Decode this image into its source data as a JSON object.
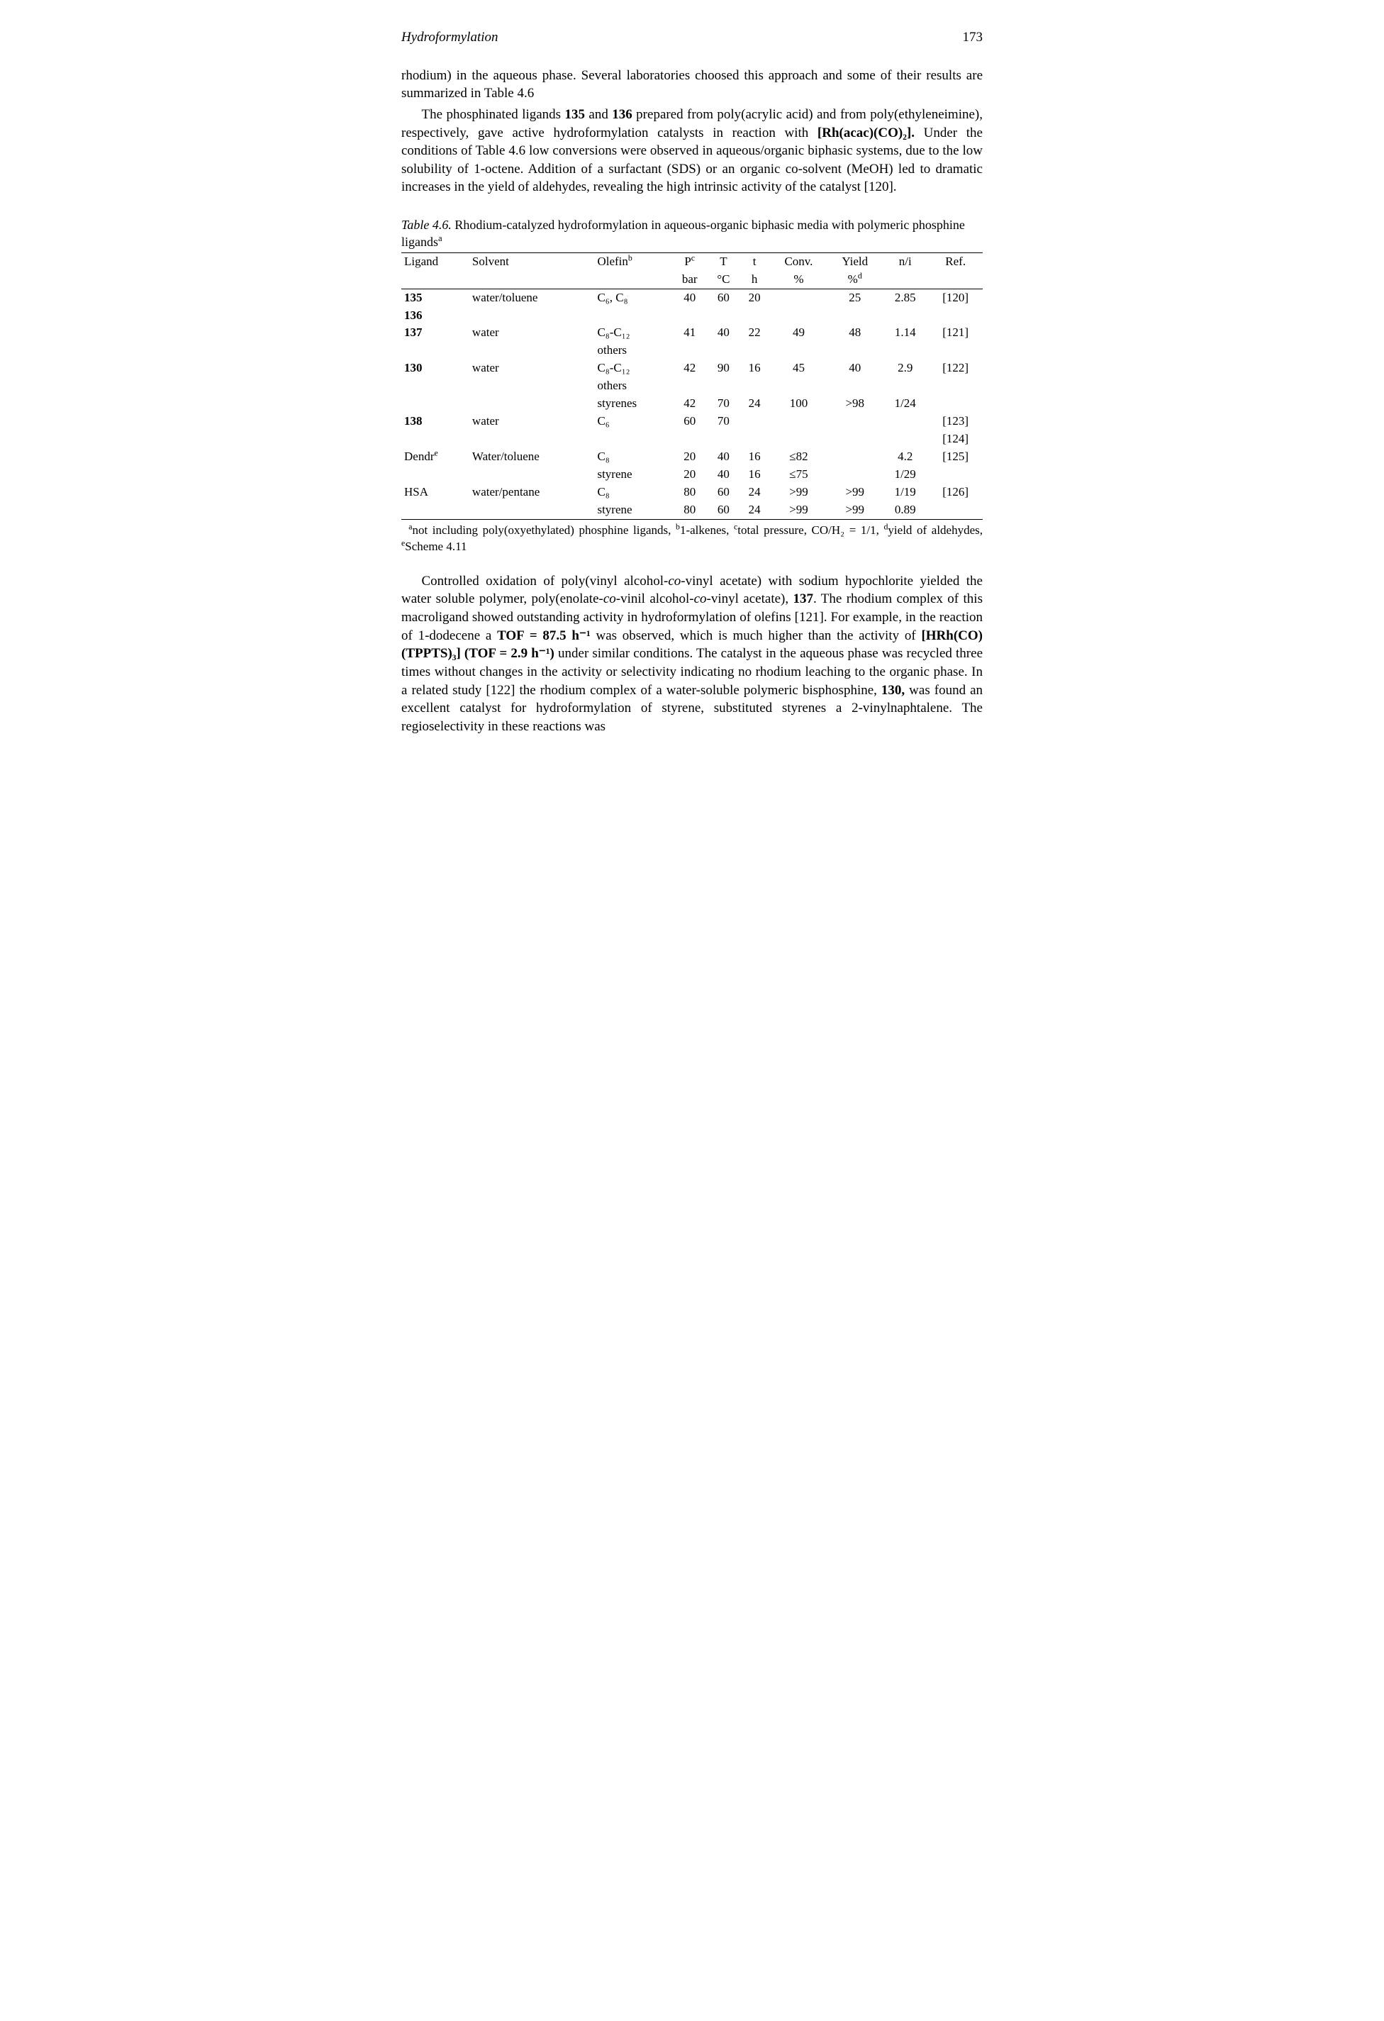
{
  "header": {
    "running": "Hydroformylation",
    "page": "173"
  },
  "para1": "rhodium) in the aqueous phase. Several laboratories choosed this approach and some of their results are summarized in Table 4.6",
  "para2_a": "The phosphinated ligands ",
  "para2_b": "135",
  "para2_c": " and ",
  "para2_d": "136",
  "para2_e": " prepared from poly(acrylic acid) and from poly(ethyleneimine), respectively, gave active hydroformylation catalysts in reaction with ",
  "para2_f": "[Rh(acac)(CO)₂].",
  "para2_g": " Under the conditions of Table 4.6 low conversions were observed in aqueous/organic biphasic systems, due to the low solubility of 1-octene. Addition of a surfactant (SDS) or an organic co-solvent (MeOH) led to dramatic increases in the yield of aldehydes, revealing the high intrinsic activity of the catalyst [120].",
  "table": {
    "caption_a": "Table 4.6.",
    "caption_b": " Rhodium-catalyzed hydroformylation in aqueous-organic biphasic media with polymeric phosphine ligands",
    "caption_sup": "a",
    "cols": {
      "c1": "Ligand",
      "c2": "Solvent",
      "c3": "Olefin",
      "c3s": "b",
      "c4": "P",
      "c4s": "c",
      "c4u": "bar",
      "c5": "T",
      "c5u": "°C",
      "c6": "t",
      "c6u": "h",
      "c7": "Conv.",
      "c7u": "%",
      "c8": "Yield",
      "c8u": "%",
      "c8us": "d",
      "c9": "n/i",
      "c10": "Ref."
    },
    "r1": {
      "ligand": "135",
      "solvent": "water/toluene",
      "olefin": "C₆, C₈",
      "p": "40",
      "T": "60",
      "t": "20",
      "conv": "",
      "yield": "25",
      "ni": "2.85",
      "ref": "[120]"
    },
    "r1b": {
      "ligand": "136"
    },
    "r2": {
      "ligand": "137",
      "solvent": "water",
      "olefin": "C₈-C₁₂",
      "p": "41",
      "T": "40",
      "t": "22",
      "conv": "49",
      "yield": "48",
      "ni": "1.14",
      "ref": "[121]"
    },
    "r2b": {
      "olefin": "others"
    },
    "r3": {
      "ligand": "130",
      "solvent": "water",
      "olefin": "C₈-C₁₂",
      "p": "42",
      "T": "90",
      "t": "16",
      "conv": "45",
      "yield": "40",
      "ni": "2.9",
      "ref": "[122]"
    },
    "r3b": {
      "olefin": "others"
    },
    "r3c": {
      "olefin": "styrenes",
      "p": "42",
      "T": "70",
      "t": "24",
      "conv": "100",
      "yield": ">98",
      "ni": "1/24"
    },
    "r4": {
      "ligand": "138",
      "solvent": "water",
      "olefin": "C₆",
      "p": "60",
      "T": "70",
      "ref": "[123]"
    },
    "r4b": {
      "ref": "[124]"
    },
    "r5": {
      "ligand": "Dendr",
      "ligsup": "e",
      "solvent": "Water/toluene",
      "olefin": "C₈",
      "p": "20",
      "T": "40",
      "t": "16",
      "conv": "≤82",
      "yield": "",
      "ni": "4.2",
      "ref": "[125]"
    },
    "r5b": {
      "olefin": "styrene",
      "p": "20",
      "T": "40",
      "t": "16",
      "conv": "≤75",
      "ni": "1/29"
    },
    "r6": {
      "ligand": "HSA",
      "solvent": "water/pentane",
      "olefin": "C₈",
      "p": "80",
      "T": "60",
      "t": "24",
      "conv": ">99",
      "yield": ">99",
      "ni": "1/19",
      "ref": "[126]"
    },
    "r6b": {
      "olefin": "styrene",
      "p": "80",
      "T": "60",
      "t": "24",
      "conv": ">99",
      "yield": ">99",
      "ni": "0.89"
    }
  },
  "footnote": {
    "a_sup": "a",
    "a": "not including poly(oxyethylated) phosphine ligands, ",
    "b_sup": "b",
    "b": "1-alkenes, ",
    "c_sup": "c",
    "c": "total pressure, CO/H₂ = 1/1, ",
    "d_sup": "d",
    "d": "yield of aldehydes, ",
    "e_sup": "e",
    "e": "Scheme 4.11"
  },
  "para3_a": "Controlled oxidation of poly(vinyl alcohol-",
  "para3_b": "co",
  "para3_c": "-vinyl acetate) with sodium hypochlorite yielded the water soluble polymer, poly(enolate-",
  "para3_d": "co",
  "para3_e": "-vinil alcohol-",
  "para3_f": "co",
  "para3_g": "-vinyl acetate), ",
  "para3_h": "137",
  "para3_i": ". The rhodium complex of this macroligand showed outstanding activity in hydroformylation of olefins [121]. For example, in the reaction of 1-dodecene a ",
  "para3_j": "TOF = 87.5 h⁻¹",
  "para3_k": " was observed, which is much higher than the activity of ",
  "para3_l": "[HRh(CO)(TPPTS)₃] (TOF = 2.9 h⁻¹)",
  "para3_m": " under similar conditions. The catalyst in the aqueous phase was recycled three times without changes in the activity or selectivity indicating no rhodium leaching to the organic phase. In a  related study [122] the rhodium complex of a water-soluble polymeric bisphosphine, ",
  "para3_n": "130,",
  "para3_o": " was found an excellent catalyst for hydroformylation of styrene, substituted styrenes a 2-vinylnaphtalene. The regioselectivity in these reactions was"
}
